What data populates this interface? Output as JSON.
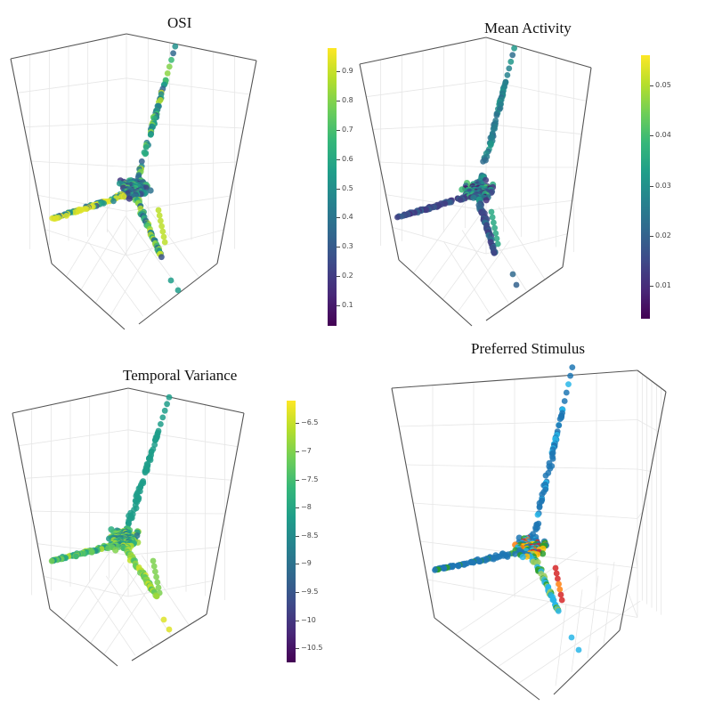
{
  "colors": {
    "viridis": [
      "#440154",
      "#482878",
      "#3e4a89",
      "#31688e",
      "#26828e",
      "#1f9e89",
      "#35b779",
      "#6ece58",
      "#b5de2b",
      "#fde725"
    ],
    "box_line": "#555555",
    "grid_line": "#e6e6e6",
    "preferred": [
      "#1f77b4",
      "#2ca02c",
      "#29b6e8",
      "#d62728",
      "#ff7f0e",
      "#ffc107",
      "#9ccc65"
    ]
  },
  "panels": [
    {
      "title": "OSI",
      "colorbar": {
        "ticks": [
          {
            "label": "0.9",
            "value": 0.9
          },
          {
            "label": "0.8",
            "value": 0.8
          },
          {
            "label": "0.7",
            "value": 0.7
          },
          {
            "label": "0.6",
            "value": 0.6
          },
          {
            "label": "0.5",
            "value": 0.5
          },
          {
            "label": "0.4",
            "value": 0.4
          },
          {
            "label": "0.3",
            "value": 0.3
          },
          {
            "label": "0.2",
            "value": 0.2
          },
          {
            "label": "0.1",
            "value": 0.1
          }
        ],
        "min": 0.03,
        "max": 0.98
      }
    },
    {
      "title": "Mean Activity",
      "colorbar": {
        "ticks": [
          {
            "label": "0.05",
            "value": 0.05
          },
          {
            "label": "0.04",
            "value": 0.04
          },
          {
            "label": "0.03",
            "value": 0.03
          },
          {
            "label": "0.02",
            "value": 0.02
          },
          {
            "label": "0.01",
            "value": 0.01
          }
        ],
        "min": 0.0035,
        "max": 0.056
      }
    },
    {
      "title": "Temporal Variance",
      "colorbar": {
        "ticks": [
          {
            "label": "−6.5",
            "value": -6.5
          },
          {
            "label": "−7",
            "value": -7
          },
          {
            "label": "−7.5",
            "value": -7.5
          },
          {
            "label": "−8",
            "value": -8
          },
          {
            "label": "−8.5",
            "value": -8.5
          },
          {
            "label": "−9",
            "value": -9
          },
          {
            "label": "−9.5",
            "value": -9.5
          },
          {
            "label": "−10",
            "value": -10
          },
          {
            "label": "−10.5",
            "value": -10.5
          }
        ],
        "min": -10.75,
        "max": -6.1
      }
    },
    {
      "title": "Preferred Stimulus",
      "colorbar": null
    }
  ],
  "chart_data": [
    {
      "type": "scatter",
      "title": "OSI",
      "projection": "3d",
      "color_variable": "OSI",
      "colorscale": "viridis",
      "color_range": [
        0.03,
        0.98
      ],
      "colorbar_ticks": [
        0.1,
        0.2,
        0.3,
        0.4,
        0.5,
        0.6,
        0.7,
        0.8,
        0.9
      ],
      "structure": "three arms radiating from a dense central cluster",
      "grid": true,
      "legend": "colorbar-right"
    },
    {
      "type": "scatter",
      "title": "Mean Activity",
      "projection": "3d",
      "color_variable": "Mean Activity",
      "colorscale": "viridis",
      "color_range": [
        0.0035,
        0.056
      ],
      "colorbar_ticks": [
        0.01,
        0.02,
        0.03,
        0.04,
        0.05
      ],
      "structure": "three arms radiating from a dense central cluster",
      "grid": true,
      "legend": "colorbar-right"
    },
    {
      "type": "scatter",
      "title": "Temporal Variance",
      "projection": "3d",
      "color_variable": "Temporal Variance",
      "colorscale": "viridis",
      "color_range": [
        -10.75,
        -6.1
      ],
      "colorbar_ticks": [
        -10.5,
        -10,
        -9.5,
        -9,
        -8.5,
        -8,
        -7.5,
        -7,
        -6.5
      ],
      "structure": "three arms radiating from a dense central cluster",
      "grid": true,
      "legend": "colorbar-right"
    },
    {
      "type": "scatter",
      "title": "Preferred Stimulus",
      "projection": "3d",
      "color_variable": "Preferred Stimulus",
      "colorscale": "categorical",
      "structure": "three arms radiating from a dense central cluster",
      "grid": true,
      "legend": "none"
    }
  ]
}
